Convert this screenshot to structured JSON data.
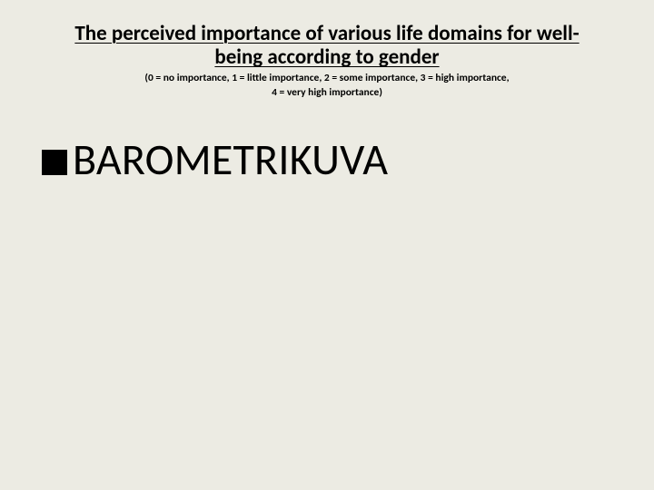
{
  "slide": {
    "background_color": "#ecebe3",
    "text_color": "#000000"
  },
  "header": {
    "title_line1": "The perceived  importance of various life domains for well-",
    "title_line2": "being according to gender",
    "title_fontsize": 23,
    "title_fontweight": 700,
    "title_underlined": true,
    "subtitle_line1": "(0 = no importance, 1 = little importance, 2 = some importance, 3 = high importance,",
    "subtitle_line2": "4 = very high importance)",
    "subtitle_fontsize": 11.5,
    "subtitle_fontweight": 700
  },
  "body": {
    "bullet": {
      "shape": "square",
      "size": 28,
      "color": "#000000"
    },
    "text": "BAROMETRIKUVA",
    "fontsize": 48,
    "fontweight": 400
  }
}
